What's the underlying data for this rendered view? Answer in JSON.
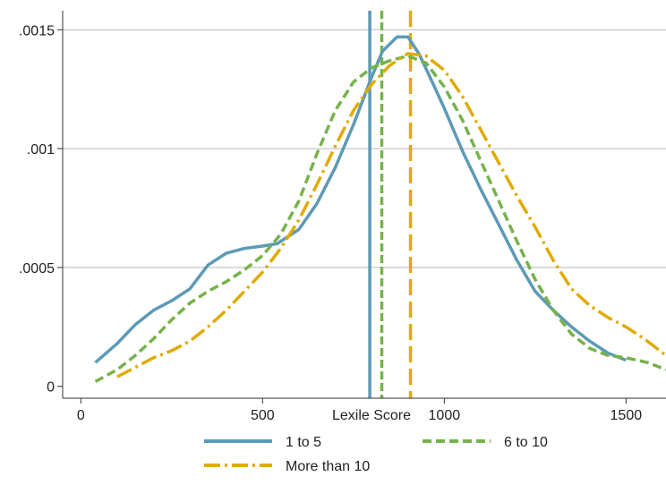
{
  "chart_data": {
    "type": "line",
    "title": "",
    "xlabel": "Lexile Score",
    "ylabel": "",
    "xlim": [
      -50,
      1610
    ],
    "ylim": [
      -5e-05,
      0.00158
    ],
    "x_ticks": [
      {
        "value": 0,
        "label": "0"
      },
      {
        "value": 500,
        "label": "500"
      },
      {
        "value": 1000,
        "label": "1000"
      },
      {
        "value": 1500,
        "label": "1500"
      }
    ],
    "y_ticks": [
      {
        "value": 0,
        "label": "0"
      },
      {
        "value": 0.0005,
        "label": ".0005"
      },
      {
        "value": 0.001,
        "label": ".001"
      },
      {
        "value": 0.0015,
        "label": ".0015"
      }
    ],
    "grid": "horizontal",
    "legend_position": "bottom",
    "series": [
      {
        "name": "1 to 5",
        "color": "#5d9ab5",
        "style": "solid",
        "mean_line": 795,
        "points": [
          [
            40,
            0.0001
          ],
          [
            100,
            0.00018
          ],
          [
            150,
            0.00026
          ],
          [
            200,
            0.00032
          ],
          [
            250,
            0.00036
          ],
          [
            300,
            0.00041
          ],
          [
            350,
            0.00051
          ],
          [
            400,
            0.00056
          ],
          [
            450,
            0.00058
          ],
          [
            500,
            0.00059
          ],
          [
            540,
            0.0006
          ],
          [
            600,
            0.00066
          ],
          [
            650,
            0.00077
          ],
          [
            700,
            0.00092
          ],
          [
            750,
            0.0011
          ],
          [
            800,
            0.0013
          ],
          [
            830,
            0.00141
          ],
          [
            870,
            0.00147
          ],
          [
            900,
            0.00147
          ],
          [
            930,
            0.0014
          ],
          [
            970,
            0.00127
          ],
          [
            1000,
            0.00117
          ],
          [
            1050,
            0.00099
          ],
          [
            1100,
            0.00083
          ],
          [
            1150,
            0.00068
          ],
          [
            1200,
            0.00053
          ],
          [
            1250,
            0.0004
          ],
          [
            1300,
            0.00032
          ],
          [
            1350,
            0.00025
          ],
          [
            1400,
            0.00019
          ],
          [
            1450,
            0.00014
          ],
          [
            1500,
            0.00011
          ]
        ]
      },
      {
        "name": "6 to 10",
        "color": "#77b24c",
        "style": "dash",
        "mean_line": 828,
        "points": [
          [
            40,
            2e-05
          ],
          [
            100,
            7e-05
          ],
          [
            150,
            0.00013
          ],
          [
            200,
            0.0002
          ],
          [
            250,
            0.00028
          ],
          [
            300,
            0.00035
          ],
          [
            350,
            0.0004
          ],
          [
            400,
            0.00044
          ],
          [
            450,
            0.00049
          ],
          [
            500,
            0.00055
          ],
          [
            550,
            0.00064
          ],
          [
            600,
            0.00078
          ],
          [
            650,
            0.00098
          ],
          [
            700,
            0.00116
          ],
          [
            750,
            0.00128
          ],
          [
            800,
            0.00134
          ],
          [
            850,
            0.00137
          ],
          [
            900,
            0.00139
          ],
          [
            950,
            0.00136
          ],
          [
            1000,
            0.00126
          ],
          [
            1050,
            0.00112
          ],
          [
            1100,
            0.00095
          ],
          [
            1150,
            0.00078
          ],
          [
            1200,
            0.00061
          ],
          [
            1250,
            0.00045
          ],
          [
            1300,
            0.00032
          ],
          [
            1350,
            0.00022
          ],
          [
            1400,
            0.00016
          ],
          [
            1450,
            0.00013
          ],
          [
            1500,
            0.00012
          ],
          [
            1560,
            0.0001
          ],
          [
            1610,
            7e-05
          ]
        ]
      },
      {
        "name": "More than 10",
        "color": "#e0ab00",
        "style": "dashdot",
        "mean_line": 907,
        "points": [
          [
            100,
            4e-05
          ],
          [
            150,
            8e-05
          ],
          [
            200,
            0.00012
          ],
          [
            250,
            0.00015
          ],
          [
            300,
            0.00019
          ],
          [
            350,
            0.00025
          ],
          [
            400,
            0.00032
          ],
          [
            450,
            0.0004
          ],
          [
            500,
            0.00048
          ],
          [
            550,
            0.00058
          ],
          [
            600,
            0.0007
          ],
          [
            650,
            0.00085
          ],
          [
            700,
            0.00101
          ],
          [
            750,
            0.00116
          ],
          [
            800,
            0.00127
          ],
          [
            850,
            0.00135
          ],
          [
            900,
            0.0014
          ],
          [
            950,
            0.00139
          ],
          [
            1000,
            0.00133
          ],
          [
            1050,
            0.00122
          ],
          [
            1100,
            0.00108
          ],
          [
            1150,
            0.00094
          ],
          [
            1200,
            0.0008
          ],
          [
            1250,
            0.00067
          ],
          [
            1300,
            0.00053
          ],
          [
            1350,
            0.00041
          ],
          [
            1400,
            0.00034
          ],
          [
            1450,
            0.00029
          ],
          [
            1500,
            0.00025
          ],
          [
            1550,
            0.0002
          ],
          [
            1610,
            0.00013
          ]
        ]
      }
    ]
  }
}
